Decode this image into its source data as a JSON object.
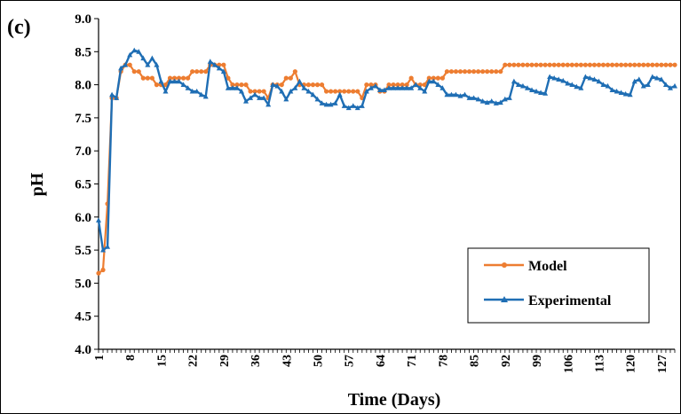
{
  "chart_data": {
    "type": "line",
    "panel_label": "(c)",
    "title": "",
    "xlabel": "Time (Days)",
    "ylabel": "pH",
    "xlim": [
      1,
      130
    ],
    "ylim": [
      4.0,
      9.0
    ],
    "y_ticks": [
      4.0,
      4.5,
      5.0,
      5.5,
      6.0,
      6.5,
      7.0,
      7.5,
      8.0,
      8.5,
      9.0
    ],
    "y_tick_labels": [
      "4.0",
      "4.5",
      "5.0",
      "5.5",
      "6.0",
      "6.5",
      "7.0",
      "7.5",
      "8.0",
      "8.5",
      "9.0"
    ],
    "x_tick_labels": [
      "1",
      "8",
      "15",
      "22",
      "29",
      "36",
      "43",
      "50",
      "57",
      "64",
      "71",
      "78",
      "85",
      "92",
      "99",
      "106",
      "113",
      "120",
      "127"
    ],
    "x_ticks": [
      1,
      8,
      15,
      22,
      29,
      36,
      43,
      50,
      57,
      64,
      71,
      78,
      85,
      92,
      99,
      106,
      113,
      120,
      127
    ],
    "grid": false,
    "legend_position": "bottom-right",
    "series": [
      {
        "name": "Model",
        "color": "#ED7D31",
        "marker": "circle",
        "x": [
          1,
          2,
          3,
          4,
          5,
          6,
          7,
          8,
          9,
          10,
          11,
          12,
          13,
          14,
          15,
          16,
          17,
          18,
          19,
          20,
          21,
          22,
          23,
          24,
          25,
          26,
          27,
          28,
          29,
          30,
          31,
          32,
          33,
          34,
          35,
          36,
          37,
          38,
          39,
          40,
          41,
          42,
          43,
          44,
          45,
          46,
          47,
          48,
          49,
          50,
          51,
          52,
          53,
          54,
          55,
          56,
          57,
          58,
          59,
          60,
          61,
          62,
          63,
          64,
          65,
          66,
          67,
          68,
          69,
          70,
          71,
          72,
          73,
          74,
          75,
          76,
          77,
          78,
          79,
          80,
          81,
          82,
          83,
          84,
          85,
          86,
          87,
          88,
          89,
          90,
          91,
          92,
          93,
          94,
          95,
          96,
          97,
          98,
          99,
          100,
          101,
          102,
          103,
          104,
          105,
          106,
          107,
          108,
          109,
          110,
          111,
          112,
          113,
          114,
          115,
          116,
          117,
          118,
          119,
          120,
          121,
          122,
          123,
          124,
          125,
          126,
          127,
          128,
          129,
          130
        ],
        "y": [
          5.15,
          5.2,
          6.2,
          7.8,
          7.8,
          8.2,
          8.3,
          8.3,
          8.2,
          8.2,
          8.1,
          8.1,
          8.1,
          8.0,
          8.0,
          8.0,
          8.1,
          8.1,
          8.1,
          8.1,
          8.1,
          8.2,
          8.2,
          8.2,
          8.2,
          8.3,
          8.3,
          8.3,
          8.3,
          8.1,
          8.0,
          8.0,
          8.0,
          8.0,
          7.9,
          7.9,
          7.9,
          7.9,
          7.8,
          8.0,
          8.0,
          8.0,
          8.1,
          8.1,
          8.2,
          8.0,
          8.0,
          8.0,
          8.0,
          8.0,
          8.0,
          7.9,
          7.9,
          7.9,
          7.9,
          7.9,
          7.9,
          7.9,
          7.9,
          7.8,
          8.0,
          8.0,
          8.0,
          7.9,
          7.9,
          8.0,
          8.0,
          8.0,
          8.0,
          8.0,
          8.1,
          8.0,
          8.0,
          8.0,
          8.1,
          8.1,
          8.1,
          8.1,
          8.2,
          8.2,
          8.2,
          8.2,
          8.2,
          8.2,
          8.2,
          8.2,
          8.2,
          8.2,
          8.2,
          8.2,
          8.2,
          8.3,
          8.3,
          8.3,
          8.3,
          8.3,
          8.3,
          8.3,
          8.3,
          8.3,
          8.3,
          8.3,
          8.3,
          8.3,
          8.3,
          8.3,
          8.3,
          8.3,
          8.3,
          8.3,
          8.3,
          8.3,
          8.3,
          8.3,
          8.3,
          8.3,
          8.3,
          8.3,
          8.3,
          8.3,
          8.3,
          8.3,
          8.3,
          8.3,
          8.3,
          8.3,
          8.3,
          8.3,
          8.3,
          8.3
        ]
      },
      {
        "name": "Experimental",
        "color": "#1F6EB4",
        "marker": "triangle",
        "x": [
          1,
          2,
          3,
          4,
          5,
          6,
          7,
          8,
          9,
          10,
          11,
          12,
          13,
          14,
          15,
          16,
          17,
          18,
          19,
          20,
          21,
          22,
          23,
          24,
          25,
          26,
          27,
          28,
          29,
          30,
          31,
          32,
          33,
          34,
          35,
          36,
          37,
          38,
          39,
          40,
          41,
          42,
          43,
          44,
          45,
          46,
          47,
          48,
          49,
          50,
          51,
          52,
          53,
          54,
          55,
          56,
          57,
          58,
          59,
          60,
          61,
          62,
          63,
          64,
          65,
          66,
          67,
          68,
          69,
          70,
          71,
          72,
          73,
          74,
          75,
          76,
          77,
          78,
          79,
          80,
          81,
          82,
          83,
          84,
          85,
          86,
          87,
          88,
          89,
          90,
          91,
          92,
          93,
          94,
          95,
          96,
          97,
          98,
          99,
          100,
          101,
          102,
          103,
          104,
          105,
          106,
          107,
          108,
          109,
          110,
          111,
          112,
          113,
          114,
          115,
          116,
          117,
          118,
          119,
          120,
          121,
          122,
          123,
          124,
          125,
          126,
          127,
          128,
          129,
          130
        ],
        "y": [
          5.95,
          5.5,
          5.55,
          7.85,
          7.8,
          8.25,
          8.3,
          8.45,
          8.52,
          8.5,
          8.4,
          8.3,
          8.4,
          8.3,
          8.05,
          7.9,
          8.05,
          8.05,
          8.05,
          8.0,
          7.95,
          7.9,
          7.9,
          7.85,
          7.82,
          8.35,
          8.3,
          8.25,
          8.2,
          7.95,
          7.95,
          7.95,
          7.9,
          7.75,
          7.8,
          7.85,
          7.8,
          7.8,
          7.7,
          8.0,
          7.98,
          7.9,
          7.78,
          7.9,
          7.95,
          8.05,
          7.95,
          7.9,
          7.85,
          7.78,
          7.72,
          7.7,
          7.7,
          7.72,
          7.85,
          7.68,
          7.65,
          7.68,
          7.65,
          7.68,
          7.9,
          7.95,
          7.98,
          7.92,
          7.92,
          7.95,
          7.95,
          7.95,
          7.95,
          7.95,
          7.95,
          8.0,
          7.95,
          7.9,
          8.05,
          8.05,
          8.0,
          7.95,
          7.85,
          7.85,
          7.85,
          7.83,
          7.85,
          7.8,
          7.8,
          7.78,
          7.75,
          7.73,
          7.75,
          7.72,
          7.73,
          7.78,
          7.8,
          8.05,
          8.0,
          7.98,
          7.95,
          7.92,
          7.9,
          7.88,
          7.87,
          8.12,
          8.1,
          8.08,
          8.06,
          8.02,
          8.0,
          7.97,
          7.95,
          8.12,
          8.1,
          8.08,
          8.05,
          8.0,
          7.98,
          7.92,
          7.9,
          7.88,
          7.86,
          7.85,
          8.05,
          8.08,
          7.98,
          8.0,
          8.12,
          8.1,
          8.08,
          8.0,
          7.95,
          7.98
        ]
      }
    ]
  }
}
